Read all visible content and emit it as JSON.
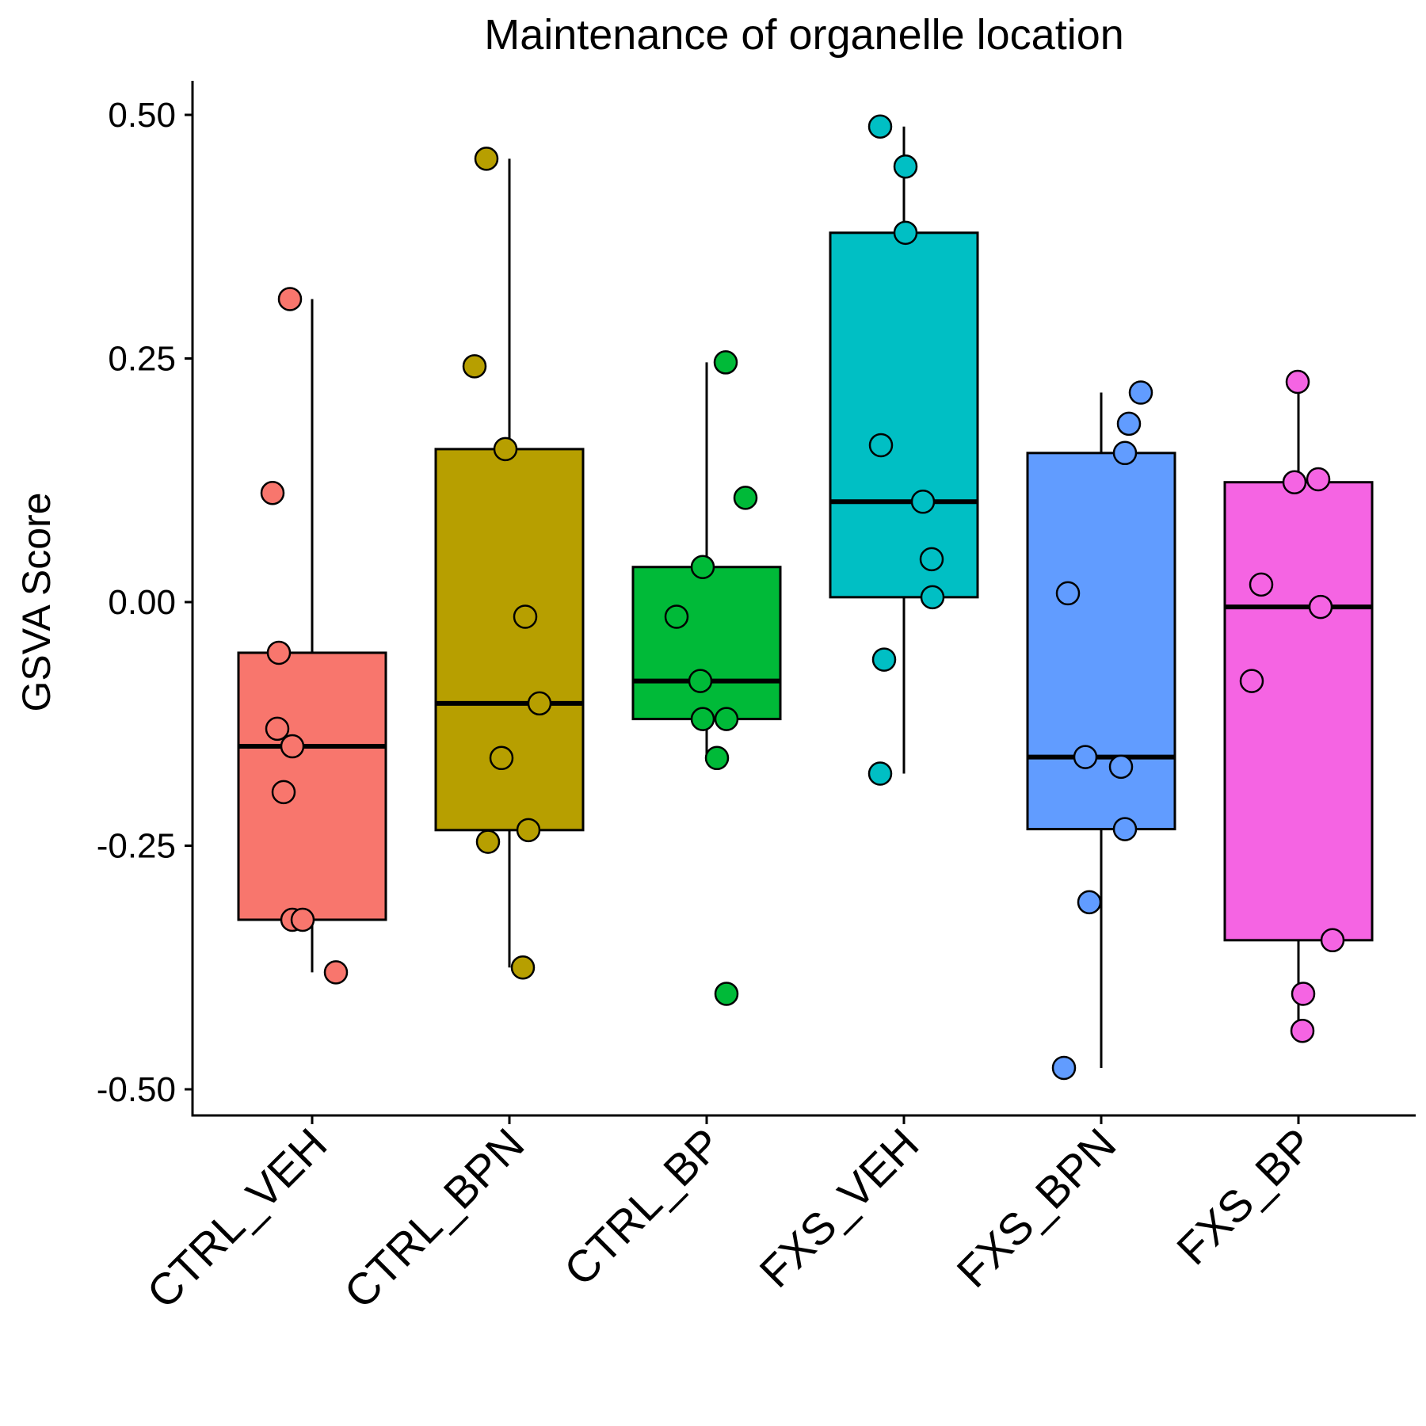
{
  "chart_data": {
    "type": "box",
    "title": "Maintenance of organelle location",
    "xlabel": "",
    "ylabel": "GSVA Score",
    "ylim": [
      -0.53,
      0.535
    ],
    "yticks": [
      0.5,
      0.25,
      0.0,
      -0.25,
      -0.5
    ],
    "ytick_labels": [
      "0.50",
      "0.25",
      "0.00",
      "-0.25",
      "-0.50"
    ],
    "grid": false,
    "legend": "none",
    "categories": [
      "CTRL_VEH",
      "CTRL_BPN",
      "CTRL_BP",
      "FXS_VEH",
      "FXS_BPN",
      "FXS_BP"
    ],
    "colors": [
      "#F8766D",
      "#B79F00",
      "#00BA38",
      "#00BFC4",
      "#619CFF",
      "#F564E3"
    ],
    "boxes": [
      {
        "category": "CTRL_VEH",
        "whisker_low": -0.38,
        "q1": -0.326,
        "median": -0.148,
        "q3": -0.052,
        "whisker_high": 0.311
      },
      {
        "category": "CTRL_BPN",
        "whisker_low": -0.375,
        "q1": -0.234,
        "median": -0.104,
        "q3": 0.157,
        "whisker_high": 0.455
      },
      {
        "category": "CTRL_BP",
        "whisker_low": -0.16,
        "q1": -0.12,
        "median": -0.081,
        "q3": 0.036,
        "whisker_high": 0.246
      },
      {
        "category": "FXS_VEH",
        "whisker_low": -0.176,
        "q1": 0.005,
        "median": 0.103,
        "q3": 0.379,
        "whisker_high": 0.488
      },
      {
        "category": "FXS_BPN",
        "whisker_low": -0.478,
        "q1": -0.233,
        "median": -0.159,
        "q3": 0.153,
        "whisker_high": 0.215
      },
      {
        "category": "FXS_BP",
        "whisker_low": -0.44,
        "q1": -0.347,
        "median": -0.005,
        "q3": 0.123,
        "whisker_high": 0.226
      }
    ],
    "points": [
      {
        "category": "CTRL_VEH",
        "values": [
          0.311,
          0.112,
          -0.052,
          -0.13,
          -0.148,
          -0.195,
          -0.326,
          -0.326,
          -0.38
        ]
      },
      {
        "category": "CTRL_BPN",
        "values": [
          0.455,
          0.242,
          0.157,
          -0.015,
          -0.104,
          -0.16,
          -0.234,
          -0.246,
          -0.375
        ]
      },
      {
        "category": "CTRL_BP",
        "values": [
          0.246,
          0.107,
          0.036,
          -0.015,
          -0.081,
          -0.12,
          -0.12,
          -0.16,
          -0.402
        ]
      },
      {
        "category": "FXS_VEH",
        "values": [
          0.488,
          0.447,
          0.379,
          0.161,
          0.103,
          0.044,
          0.005,
          -0.059,
          -0.176
        ]
      },
      {
        "category": "FXS_BPN",
        "values": [
          0.215,
          0.183,
          0.153,
          0.009,
          -0.159,
          -0.169,
          -0.233,
          -0.308,
          -0.478
        ]
      },
      {
        "category": "FXS_BP",
        "values": [
          0.226,
          0.126,
          0.123,
          0.018,
          -0.005,
          -0.081,
          -0.347,
          -0.402,
          -0.44
        ]
      }
    ]
  }
}
